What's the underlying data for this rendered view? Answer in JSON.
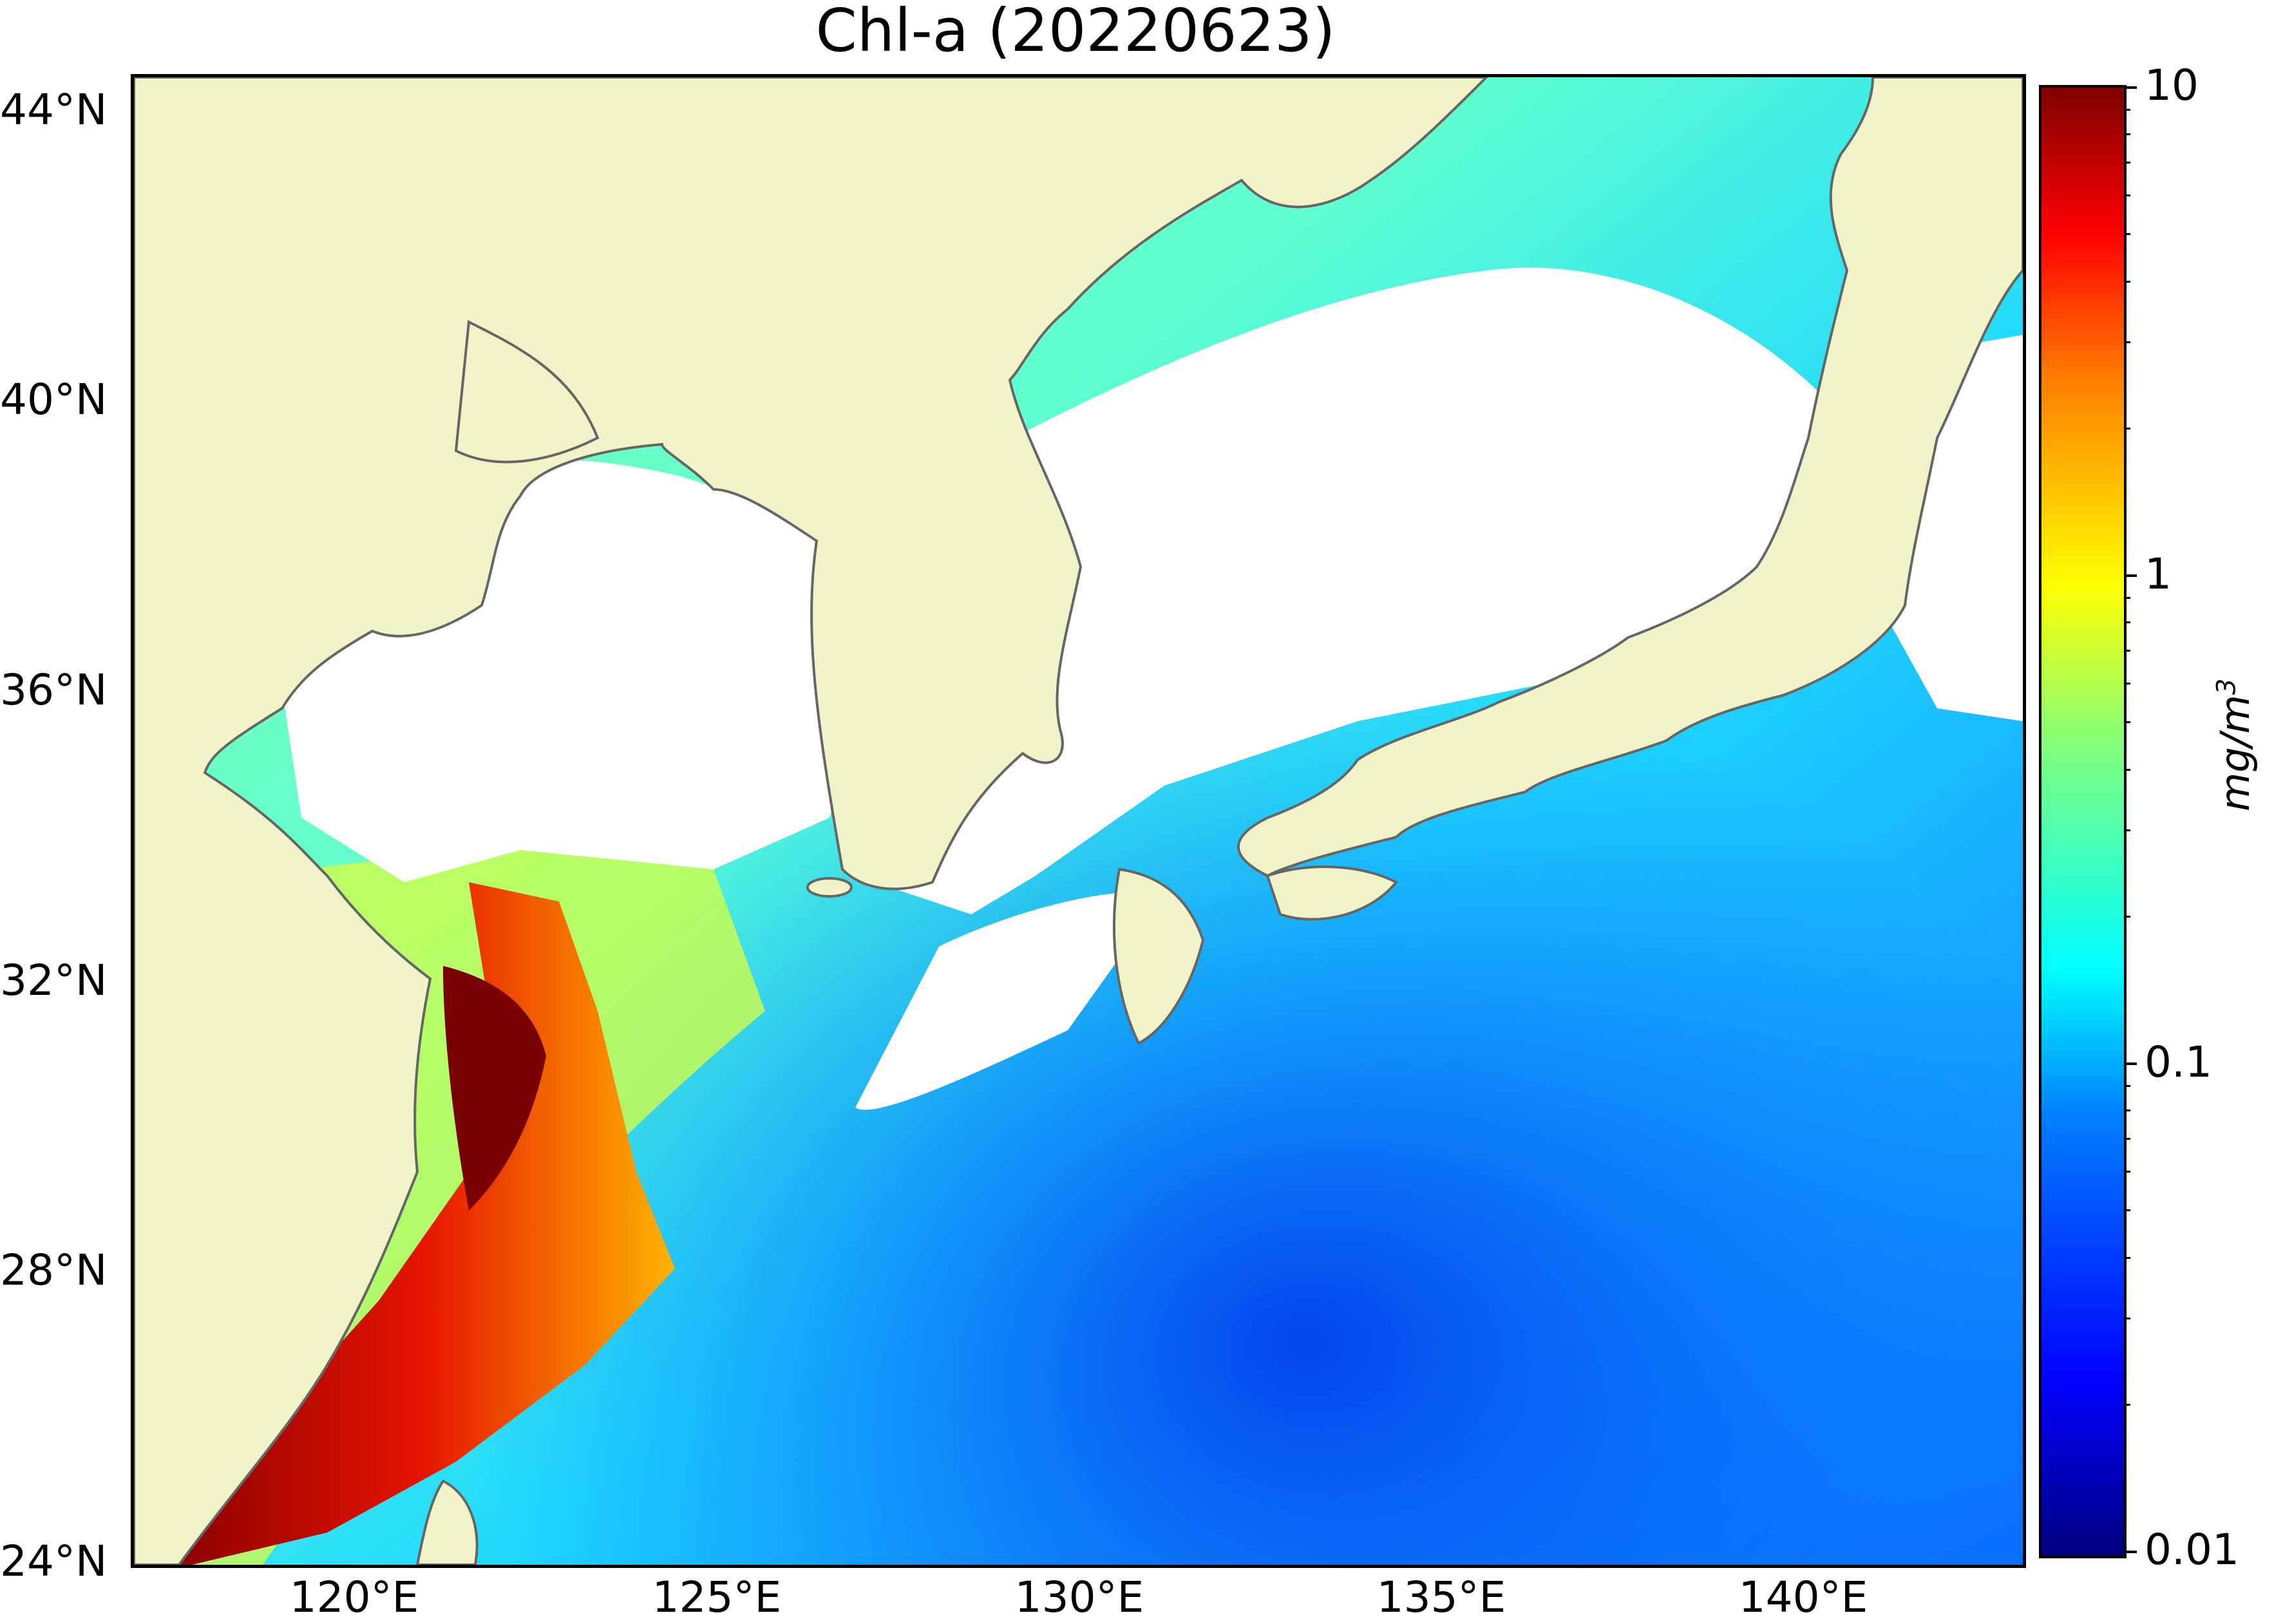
{
  "title": "Chl-a (20220623)",
  "map": {
    "extent": {
      "lon": [
        117,
        143
      ],
      "lat": [
        23.8,
        44.5
      ]
    },
    "land_color": "#f0f4c8",
    "cloud_color": "#ffffff",
    "coast_color": "#666666",
    "lat_labels": [
      "44°N",
      "40°N",
      "36°N",
      "32°N",
      "28°N",
      "24°N"
    ],
    "lon_labels": [
      "120°E",
      "125°E",
      "130°E",
      "135°E",
      "140°E"
    ]
  },
  "colorbar": {
    "scale": "log",
    "range": [
      0.01,
      10
    ],
    "tick_labels": [
      "10",
      "1",
      "0.1",
      "0.01"
    ],
    "unit_text": "mg/m",
    "unit_sup": "3",
    "colors": [
      "#00007f",
      "#0000ff",
      "#007fff",
      "#00ffff",
      "#7fff7f",
      "#ffff00",
      "#ff7f00",
      "#ff0000",
      "#7f0000"
    ]
  }
}
